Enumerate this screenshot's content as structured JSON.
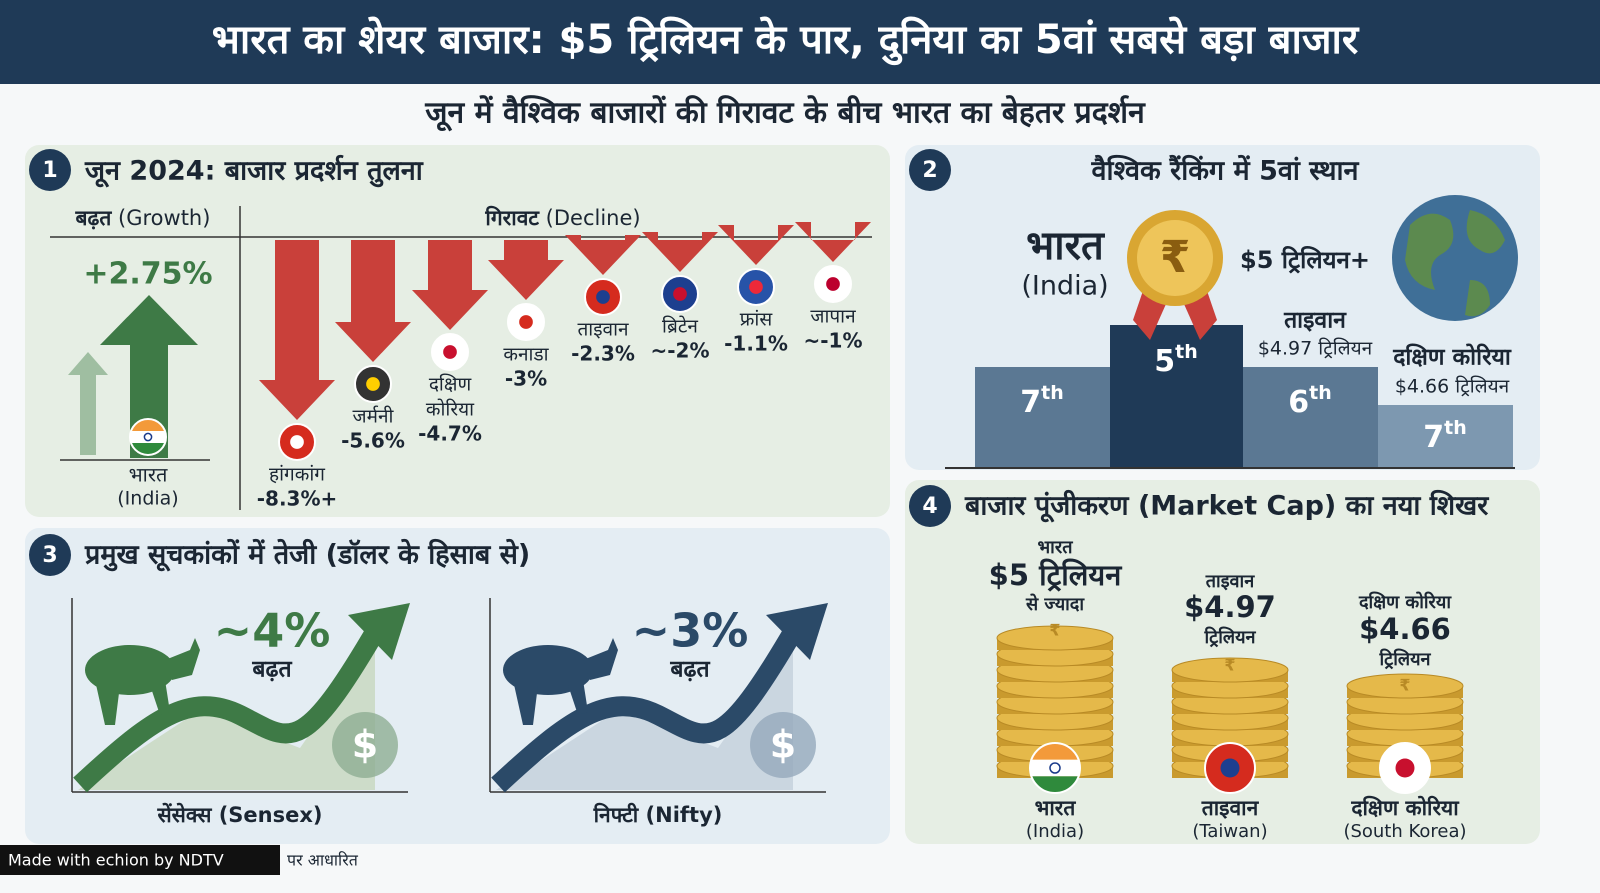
{
  "header": {
    "title": "भारत का शेयर बाजार: $5 ट्रिलियन के पार, दुनिया का 5वां सबसे बड़ा बाजार",
    "subtitle": "जून में वैश्विक बाजारों की गिरावट के बीच भारत का बेहतर प्रदर्शन"
  },
  "performance": {
    "number": "1",
    "title": "जून 2024: बाजार प्रदर्शन तुलना",
    "growth_label": "बढ़त",
    "growth_label_en": "(Growth)",
    "decline_label": "गिरावट",
    "decline_label_en": "(Decline)",
    "growth": {
      "value": "+2.75%",
      "name": "भारत",
      "name_en": "(India)"
    },
    "declines": [
      {
        "name": [
          "हांगकांग"
        ],
        "value": "-8.3%+"
      },
      {
        "name": [
          "जर्मनी"
        ],
        "value": "-5.6%"
      },
      {
        "name": [
          "दक्षिण",
          "कोरिया"
        ],
        "value": "-4.7%"
      },
      {
        "name": [
          "कनाडा"
        ],
        "value": "-3%"
      },
      {
        "name": [
          "ताइवान"
        ],
        "value": "-2.3%"
      },
      {
        "name": [
          "ब्रिटेन"
        ],
        "value": "~-2%"
      },
      {
        "name": [
          "फ्रांस"
        ],
        "value": "-1.1%"
      },
      {
        "name": [
          "जापान"
        ],
        "value": "~-1%"
      }
    ]
  },
  "ranking": {
    "number": "2",
    "title": "वैश्विक रैंकिंग में 5वां स्थान",
    "india": "भारत",
    "india_en": "(India)",
    "india_value": "$5 ट्रिलियन+",
    "medal_symbol": "₹",
    "taiwan": "ताइवान",
    "taiwan_value": "$4.97 ट्रिलियन",
    "korea": "दक्षिण कोरिया",
    "korea_value": "$4.66 ट्रिलियन",
    "podium": [
      {
        "rank": "7",
        "suffix": "th"
      },
      {
        "rank": "5",
        "suffix": "th"
      },
      {
        "rank": "6",
        "suffix": "th"
      },
      {
        "rank": "7",
        "suffix": "th"
      }
    ]
  },
  "indices": {
    "number": "3",
    "title": "प्रमुख सूचकांकों में तेजी (डॉलर के हिसाब से)",
    "coin_symbol": "$",
    "charts": [
      {
        "value": "~4%",
        "label": "बढ़त",
        "name": "सेंसेक्स (Sensex)"
      },
      {
        "value": "~3%",
        "label": "बढ़त",
        "name": "निफ्टी (Nifty)"
      }
    ]
  },
  "market_cap": {
    "number": "4",
    "title": "बाजार पूंजीकरण (Market Cap) का नया शिखर",
    "coin_symbol": "₹",
    "stacks": [
      {
        "top": "भारत",
        "value": "$5 ट्रिलियन",
        "bottom": "से ज्यादा",
        "name": "भारत",
        "name_en": "(India)"
      },
      {
        "top": "ताइवान",
        "value": "$4.97",
        "bottom": "ट्रिलियन",
        "name": "ताइवान",
        "name_en": "(Taiwan)"
      },
      {
        "top": "दक्षिण कोरिया",
        "value": "$4.66",
        "bottom": "ट्रिलियन",
        "name": "दक्षिण कोरिया",
        "name_en": "(South Korea)"
      }
    ]
  },
  "footer": {
    "badge": "Made with echion by NDTV",
    "source": "पर आधारित"
  }
}
